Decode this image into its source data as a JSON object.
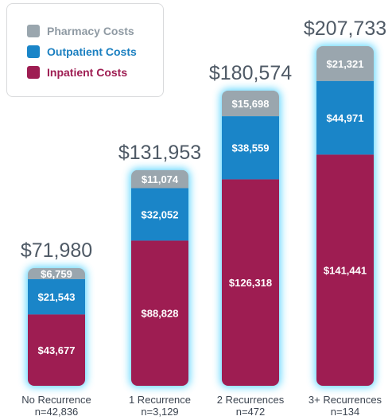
{
  "chart_data": {
    "type": "bar",
    "stacked": true,
    "categories": [
      {
        "label": "No Recurrence",
        "sublabel": "n=42,836",
        "total_label": "$71,980"
      },
      {
        "label": "1 Recurrence",
        "sublabel": "n=3,129",
        "total_label": "$131,953"
      },
      {
        "label": "2 Recurrences",
        "sublabel": "n=472",
        "total_label": "$180,574"
      },
      {
        "label": "3+ Recurrences",
        "sublabel": "n=134",
        "total_label": "$207,733"
      }
    ],
    "series": [
      {
        "name": "Inpatient Costs",
        "color": "#9e1d52",
        "values": [
          43677,
          88828,
          126318,
          141441
        ],
        "labels": [
          "$43,677",
          "$88,828",
          "$126,318",
          "$141,441"
        ]
      },
      {
        "name": "Outpatient Costs",
        "color": "#1a85c8",
        "values": [
          21543,
          32052,
          38559,
          44971
        ],
        "labels": [
          "$21,543",
          "$32,052",
          "$38,559",
          "$44,971"
        ]
      },
      {
        "name": "Pharmacy Costs",
        "color": "#9aa6ae",
        "values": [
          6759,
          11074,
          15698,
          21321
        ],
        "labels": [
          "$6,759",
          "$11,074",
          "$15,698",
          "$21,321"
        ]
      }
    ],
    "totals": [
      71980,
      131953,
      180574,
      207733
    ],
    "ylim": [
      0,
      207733
    ],
    "grid": false,
    "legend_placement": "top-left"
  },
  "legend": [
    {
      "label": "Pharmacy Costs",
      "color": "#9aa6ae",
      "text_color": "#8f9aa3"
    },
    {
      "label": "Outpatient Costs",
      "color": "#1a85c8",
      "text_color": "#1a7fc0"
    },
    {
      "label": "Inpatient Costs",
      "color": "#9e1d52",
      "text_color": "#9e1d52"
    }
  ]
}
